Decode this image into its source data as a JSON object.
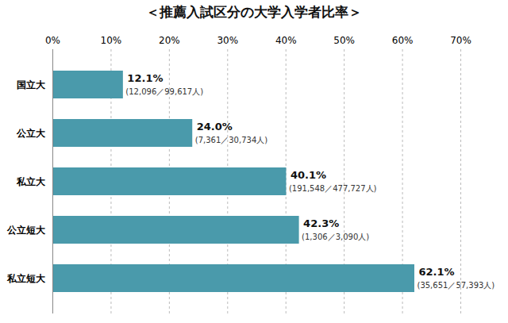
{
  "chart_data": {
    "type": "bar",
    "title": "＜推薦入試区分の大学入学者比率＞",
    "orientation": "horizontal",
    "categories": [
      "国立大",
      "公立大",
      "私立大",
      "公立短大",
      "私立短大"
    ],
    "values": [
      12.1,
      24.0,
      40.1,
      42.3,
      62.1
    ],
    "value_labels": [
      "12.1%",
      "24.0%",
      "40.1%",
      "42.3%",
      "62.1%"
    ],
    "annotations": [
      "(12,096／99,617人)",
      "(7,361／30,734人)",
      "(191,548／477,727人)",
      "(1,306／3,090人)",
      "(35,651／57,393人)"
    ],
    "color": "#4a9aab",
    "xlim": [
      0,
      70
    ],
    "xticks": [
      {
        "value": 0,
        "label": "0%"
      },
      {
        "value": 10,
        "label": "10%"
      },
      {
        "value": 20,
        "label": "20%"
      },
      {
        "value": 30,
        "label": "30%"
      },
      {
        "value": 40,
        "label": "40%"
      },
      {
        "value": 50,
        "label": "50%"
      },
      {
        "value": 60,
        "label": "60%"
      },
      {
        "value": 70,
        "label": "70%"
      }
    ],
    "grid": true,
    "data_labels": true
  }
}
